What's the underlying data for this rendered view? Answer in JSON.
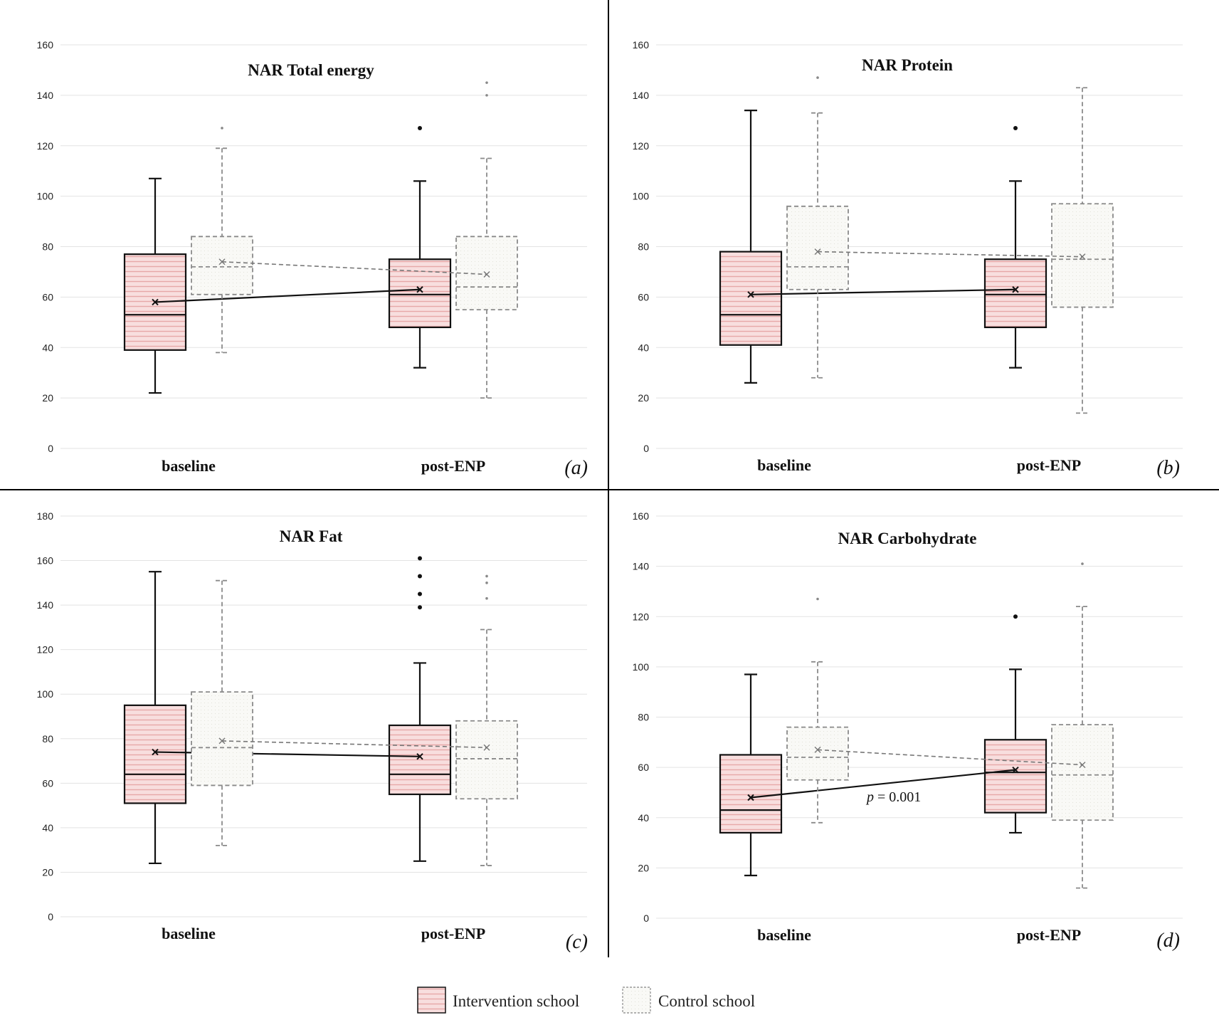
{
  "legend": {
    "intervention_label": "Intervention school",
    "control_label": "Control school"
  },
  "colors": {
    "intervention_fill": "#f8dede",
    "intervention_stripe": "#e7a8a8",
    "intervention_stroke": "#111111",
    "control_fill": "#f9f9f6",
    "control_stroke": "#8a8a8a",
    "grid": "#e3e3e3",
    "divider": "#000000"
  },
  "chart_data": [
    {
      "type": "box",
      "title": "NAR Total energy",
      "panel_label": "(a)",
      "categories": [
        "baseline",
        "post-ENP"
      ],
      "ylim": [
        0,
        160
      ],
      "yticks": [
        0,
        20,
        40,
        60,
        80,
        100,
        120,
        140,
        160
      ],
      "grid": true,
      "series": [
        {
          "name": "Intervention school",
          "boxes": [
            {
              "whisker_low": 22,
              "q1": 39,
              "median": 53,
              "q3": 77,
              "whisker_high": 107,
              "mean": 58,
              "outliers": []
            },
            {
              "whisker_low": 32,
              "q1": 48,
              "median": 61,
              "q3": 75,
              "whisker_high": 106,
              "mean": 63,
              "outliers": [
                127
              ]
            }
          ]
        },
        {
          "name": "Control school",
          "boxes": [
            {
              "whisker_low": 38,
              "q1": 61,
              "median": 72,
              "q3": 84,
              "whisker_high": 119,
              "mean": 74,
              "outliers": [
                127
              ]
            },
            {
              "whisker_low": 20,
              "q1": 55,
              "median": 64,
              "q3": 84,
              "whisker_high": 115,
              "mean": 69,
              "outliers": [
                140,
                145
              ]
            }
          ]
        }
      ]
    },
    {
      "type": "box",
      "title": "NAR Protein",
      "panel_label": "(b)",
      "categories": [
        "baseline",
        "post-ENP"
      ],
      "ylim": [
        0,
        160
      ],
      "yticks": [
        0,
        20,
        40,
        60,
        80,
        100,
        120,
        140,
        160
      ],
      "grid": true,
      "series": [
        {
          "name": "Intervention school",
          "boxes": [
            {
              "whisker_low": 26,
              "q1": 41,
              "median": 53,
              "q3": 78,
              "whisker_high": 134,
              "mean": 61,
              "outliers": []
            },
            {
              "whisker_low": 32,
              "q1": 48,
              "median": 61,
              "q3": 75,
              "whisker_high": 106,
              "mean": 63,
              "outliers": [
                127
              ]
            }
          ]
        },
        {
          "name": "Control school",
          "boxes": [
            {
              "whisker_low": 28,
              "q1": 63,
              "median": 72,
              "q3": 96,
              "whisker_high": 133,
              "mean": 78,
              "outliers": [
                147
              ]
            },
            {
              "whisker_low": 14,
              "q1": 56,
              "median": 75,
              "q3": 97,
              "whisker_high": 143,
              "mean": 76,
              "outliers": []
            }
          ]
        }
      ]
    },
    {
      "type": "box",
      "title": "NAR Fat",
      "panel_label": "(c)",
      "categories": [
        "baseline",
        "post-ENP"
      ],
      "ylim": [
        0,
        180
      ],
      "yticks": [
        0,
        20,
        40,
        60,
        80,
        100,
        120,
        140,
        160,
        180
      ],
      "grid": true,
      "series": [
        {
          "name": "Intervention school",
          "boxes": [
            {
              "whisker_low": 24,
              "q1": 51,
              "median": 64,
              "q3": 95,
              "whisker_high": 155,
              "mean": 74,
              "outliers": []
            },
            {
              "whisker_low": 25,
              "q1": 55,
              "median": 64,
              "q3": 86,
              "whisker_high": 114,
              "mean": 72,
              "outliers": [
                139,
                145,
                153,
                161
              ]
            }
          ]
        },
        {
          "name": "Control school",
          "boxes": [
            {
              "whisker_low": 32,
              "q1": 59,
              "median": 76,
              "q3": 101,
              "whisker_high": 151,
              "mean": 79,
              "outliers": []
            },
            {
              "whisker_low": 23,
              "q1": 53,
              "median": 71,
              "q3": 88,
              "whisker_high": 129,
              "mean": 76,
              "outliers": [
                143,
                150,
                153
              ]
            }
          ]
        }
      ]
    },
    {
      "type": "box",
      "title": "NAR Carbohydrate",
      "panel_label": "(d)",
      "categories": [
        "baseline",
        "post-ENP"
      ],
      "ylim": [
        0,
        160
      ],
      "yticks": [
        0,
        20,
        40,
        60,
        80,
        100,
        120,
        140,
        160
      ],
      "grid": true,
      "annotation": {
        "prefix": "p",
        "text": " = 0.001"
      },
      "series": [
        {
          "name": "Intervention school",
          "boxes": [
            {
              "whisker_low": 17,
              "q1": 34,
              "median": 43,
              "q3": 65,
              "whisker_high": 97,
              "mean": 48,
              "outliers": []
            },
            {
              "whisker_low": 34,
              "q1": 42,
              "median": 58,
              "q3": 71,
              "whisker_high": 99,
              "mean": 59,
              "outliers": [
                120
              ]
            }
          ]
        },
        {
          "name": "Control school",
          "boxes": [
            {
              "whisker_low": 38,
              "q1": 55,
              "median": 64,
              "q3": 76,
              "whisker_high": 102,
              "mean": 67,
              "outliers": [
                127
              ]
            },
            {
              "whisker_low": 12,
              "q1": 39,
              "median": 57,
              "q3": 77,
              "whisker_high": 124,
              "mean": 61,
              "outliers": [
                141
              ]
            }
          ]
        }
      ]
    }
  ]
}
